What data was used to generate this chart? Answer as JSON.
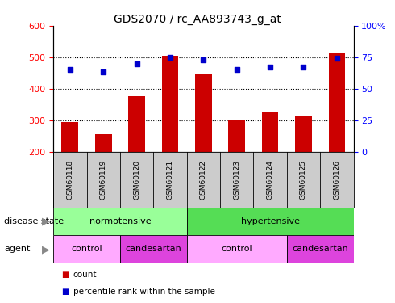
{
  "title": "GDS2070 / rc_AA893743_g_at",
  "samples": [
    "GSM60118",
    "GSM60119",
    "GSM60120",
    "GSM60121",
    "GSM60122",
    "GSM60123",
    "GSM60124",
    "GSM60125",
    "GSM60126"
  ],
  "counts": [
    295,
    255,
    375,
    505,
    445,
    300,
    325,
    315,
    515
  ],
  "percentiles": [
    65,
    63,
    70,
    75,
    73,
    65,
    67,
    67,
    74
  ],
  "ylim_left": [
    200,
    600
  ],
  "ylim_right": [
    0,
    100
  ],
  "yticks_left": [
    200,
    300,
    400,
    500,
    600
  ],
  "yticks_right": [
    0,
    25,
    50,
    75,
    100
  ],
  "ytick_labels_right": [
    "0",
    "25",
    "50",
    "75",
    "100%"
  ],
  "bar_color": "#cc0000",
  "dot_color": "#0000cc",
  "hgrid_vals": [
    300,
    400,
    500
  ],
  "disease_state_groups": [
    {
      "label": "normotensive",
      "start": 0,
      "end": 4,
      "color": "#99ff99"
    },
    {
      "label": "hypertensive",
      "start": 4,
      "end": 9,
      "color": "#55dd55"
    }
  ],
  "agent_groups": [
    {
      "label": "control",
      "start": 0,
      "end": 2,
      "color": "#ffaaff"
    },
    {
      "label": "candesartan",
      "start": 2,
      "end": 4,
      "color": "#dd44dd"
    },
    {
      "label": "control",
      "start": 4,
      "end": 7,
      "color": "#ffaaff"
    },
    {
      "label": "candesartan",
      "start": 7,
      "end": 9,
      "color": "#dd44dd"
    }
  ],
  "tick_bg_color": "#cccccc",
  "bg_color": "#ffffff",
  "left_label_disease": "disease state",
  "left_label_agent": "agent",
  "legend_items": [
    {
      "label": "count",
      "color": "#cc0000"
    },
    {
      "label": "percentile rank within the sample",
      "color": "#0000cc"
    }
  ]
}
